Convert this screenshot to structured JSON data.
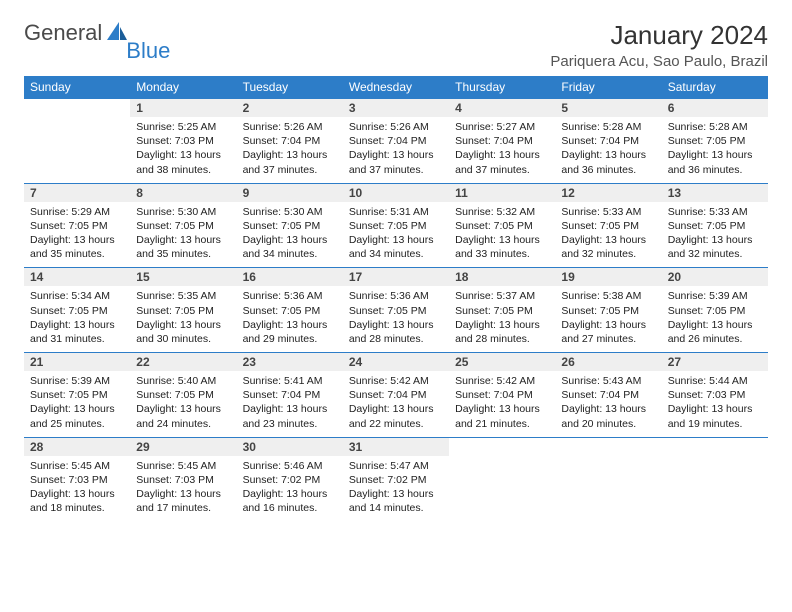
{
  "logo": {
    "general": "General",
    "blue": "Blue",
    "icon_color": "#2d7dc8"
  },
  "title": "January 2024",
  "location": "Pariquera Acu, Sao Paulo, Brazil",
  "header_bg": "#2d7dc8",
  "header_fg": "#ffffff",
  "daynum_bg": "#efefef",
  "divider_color": "#2d7dc8",
  "body_fontsize": 10.5,
  "weekdays": [
    "Sunday",
    "Monday",
    "Tuesday",
    "Wednesday",
    "Thursday",
    "Friday",
    "Saturday"
  ],
  "weeks": [
    [
      null,
      {
        "n": "1",
        "sr": "5:25 AM",
        "ss": "7:03 PM",
        "dh": "13",
        "dm": "38"
      },
      {
        "n": "2",
        "sr": "5:26 AM",
        "ss": "7:04 PM",
        "dh": "13",
        "dm": "37"
      },
      {
        "n": "3",
        "sr": "5:26 AM",
        "ss": "7:04 PM",
        "dh": "13",
        "dm": "37"
      },
      {
        "n": "4",
        "sr": "5:27 AM",
        "ss": "7:04 PM",
        "dh": "13",
        "dm": "37"
      },
      {
        "n": "5",
        "sr": "5:28 AM",
        "ss": "7:04 PM",
        "dh": "13",
        "dm": "36"
      },
      {
        "n": "6",
        "sr": "5:28 AM",
        "ss": "7:05 PM",
        "dh": "13",
        "dm": "36"
      }
    ],
    [
      {
        "n": "7",
        "sr": "5:29 AM",
        "ss": "7:05 PM",
        "dh": "13",
        "dm": "35"
      },
      {
        "n": "8",
        "sr": "5:30 AM",
        "ss": "7:05 PM",
        "dh": "13",
        "dm": "35"
      },
      {
        "n": "9",
        "sr": "5:30 AM",
        "ss": "7:05 PM",
        "dh": "13",
        "dm": "34"
      },
      {
        "n": "10",
        "sr": "5:31 AM",
        "ss": "7:05 PM",
        "dh": "13",
        "dm": "34"
      },
      {
        "n": "11",
        "sr": "5:32 AM",
        "ss": "7:05 PM",
        "dh": "13",
        "dm": "33"
      },
      {
        "n": "12",
        "sr": "5:33 AM",
        "ss": "7:05 PM",
        "dh": "13",
        "dm": "32"
      },
      {
        "n": "13",
        "sr": "5:33 AM",
        "ss": "7:05 PM",
        "dh": "13",
        "dm": "32"
      }
    ],
    [
      {
        "n": "14",
        "sr": "5:34 AM",
        "ss": "7:05 PM",
        "dh": "13",
        "dm": "31"
      },
      {
        "n": "15",
        "sr": "5:35 AM",
        "ss": "7:05 PM",
        "dh": "13",
        "dm": "30"
      },
      {
        "n": "16",
        "sr": "5:36 AM",
        "ss": "7:05 PM",
        "dh": "13",
        "dm": "29"
      },
      {
        "n": "17",
        "sr": "5:36 AM",
        "ss": "7:05 PM",
        "dh": "13",
        "dm": "28"
      },
      {
        "n": "18",
        "sr": "5:37 AM",
        "ss": "7:05 PM",
        "dh": "13",
        "dm": "28"
      },
      {
        "n": "19",
        "sr": "5:38 AM",
        "ss": "7:05 PM",
        "dh": "13",
        "dm": "27"
      },
      {
        "n": "20",
        "sr": "5:39 AM",
        "ss": "7:05 PM",
        "dh": "13",
        "dm": "26"
      }
    ],
    [
      {
        "n": "21",
        "sr": "5:39 AM",
        "ss": "7:05 PM",
        "dh": "13",
        "dm": "25"
      },
      {
        "n": "22",
        "sr": "5:40 AM",
        "ss": "7:05 PM",
        "dh": "13",
        "dm": "24"
      },
      {
        "n": "23",
        "sr": "5:41 AM",
        "ss": "7:04 PM",
        "dh": "13",
        "dm": "23"
      },
      {
        "n": "24",
        "sr": "5:42 AM",
        "ss": "7:04 PM",
        "dh": "13",
        "dm": "22"
      },
      {
        "n": "25",
        "sr": "5:42 AM",
        "ss": "7:04 PM",
        "dh": "13",
        "dm": "21"
      },
      {
        "n": "26",
        "sr": "5:43 AM",
        "ss": "7:04 PM",
        "dh": "13",
        "dm": "20"
      },
      {
        "n": "27",
        "sr": "5:44 AM",
        "ss": "7:03 PM",
        "dh": "13",
        "dm": "19"
      }
    ],
    [
      {
        "n": "28",
        "sr": "5:45 AM",
        "ss": "7:03 PM",
        "dh": "13",
        "dm": "18"
      },
      {
        "n": "29",
        "sr": "5:45 AM",
        "ss": "7:03 PM",
        "dh": "13",
        "dm": "17"
      },
      {
        "n": "30",
        "sr": "5:46 AM",
        "ss": "7:02 PM",
        "dh": "13",
        "dm": "16"
      },
      {
        "n": "31",
        "sr": "5:47 AM",
        "ss": "7:02 PM",
        "dh": "13",
        "dm": "14"
      },
      null,
      null,
      null
    ]
  ],
  "labels": {
    "sunrise": "Sunrise: ",
    "sunset": "Sunset: ",
    "daylight1": "Daylight: ",
    "hours_and": " hours and ",
    "minutes": " minutes."
  }
}
